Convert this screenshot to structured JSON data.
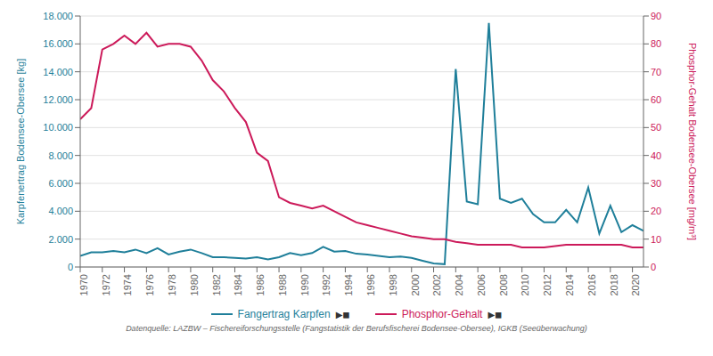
{
  "chart_data": {
    "type": "line",
    "x": [
      1970,
      1971,
      1972,
      1973,
      1974,
      1975,
      1976,
      1977,
      1978,
      1979,
      1980,
      1981,
      1982,
      1983,
      1984,
      1985,
      1986,
      1987,
      1988,
      1989,
      1990,
      1991,
      1992,
      1993,
      1994,
      1995,
      1996,
      1997,
      1998,
      1999,
      2000,
      2001,
      2002,
      2003,
      2004,
      2005,
      2006,
      2007,
      2008,
      2009,
      2010,
      2011,
      2012,
      2013,
      2014,
      2015,
      2016,
      2017,
      2018,
      2019,
      2020,
      2021
    ],
    "series": [
      {
        "name": "Fangertrag Karpfen",
        "color": "#1f7f9a",
        "values": [
          800,
          1050,
          1050,
          1150,
          1050,
          1250,
          1000,
          1350,
          900,
          1100,
          1250,
          1000,
          700,
          700,
          650,
          600,
          700,
          550,
          700,
          1000,
          850,
          1000,
          1450,
          1100,
          1150,
          950,
          900,
          800,
          700,
          750,
          650,
          450,
          250,
          200,
          14200,
          4700,
          4500,
          17500,
          4900,
          4600,
          4900,
          3800,
          3200,
          3200,
          4100,
          3200,
          5700,
          2400,
          4400,
          2500,
          3000,
          2600
        ]
      },
      {
        "name": "Phosphor-Gehalt",
        "color": "#cc1a5a",
        "axis": "y2",
        "values": [
          53,
          57,
          78,
          80,
          83,
          80,
          84,
          79,
          80,
          80,
          79,
          74,
          67,
          63,
          57,
          52,
          41,
          38,
          25,
          23,
          22,
          21,
          22,
          20,
          18,
          16,
          15,
          14,
          13,
          12,
          11,
          10.5,
          10,
          10,
          9,
          8.5,
          8,
          8,
          8,
          8,
          7,
          7,
          7,
          7.5,
          8,
          8,
          8,
          8,
          8,
          8,
          7,
          7
        ]
      }
    ],
    "xlim": [
      1970,
      2021
    ],
    "xticks": [
      1970,
      1972,
      1974,
      1976,
      1978,
      1980,
      1982,
      1984,
      1986,
      1988,
      1990,
      1992,
      1994,
      1996,
      1998,
      2000,
      2002,
      2004,
      2006,
      2008,
      2010,
      2012,
      2014,
      2016,
      2018,
      2020
    ],
    "ylim": [
      0,
      18000
    ],
    "yticks": [
      0,
      {
        "value": 2000,
        "label": "2.000"
      },
      {
        "value": 4000,
        "label": "4.000"
      },
      {
        "value": 6000,
        "label": "6.000"
      },
      {
        "value": 8000,
        "label": "8.000"
      },
      {
        "value": 10000,
        "label": "10.000"
      },
      {
        "value": 12000,
        "label": "12.000"
      },
      {
        "value": 14000,
        "label": "14.000"
      },
      {
        "value": 16000,
        "label": "16.000"
      },
      {
        "value": 18000,
        "label": "18.000"
      }
    ],
    "y2lim": [
      0,
      90
    ],
    "y2ticks": [
      0,
      10,
      20,
      30,
      40,
      50,
      60,
      70,
      80,
      90
    ],
    "y_label": "Karpfenertrag Bodensee-Obersee  [kg]",
    "y2_label": "Phosphor-Gehalt Bodensee-Obersee  [mg/m³]",
    "annotations": [
      "▶◼",
      "▶◼",
      "Datenquelle: LAZBW – Fischereiforschungsstelle (Fangstatistik der Berufsfischerei Bodensee-Obersee), IGKB (Seeüberwachung)"
    ],
    "grid": true,
    "legend": "bottom"
  }
}
